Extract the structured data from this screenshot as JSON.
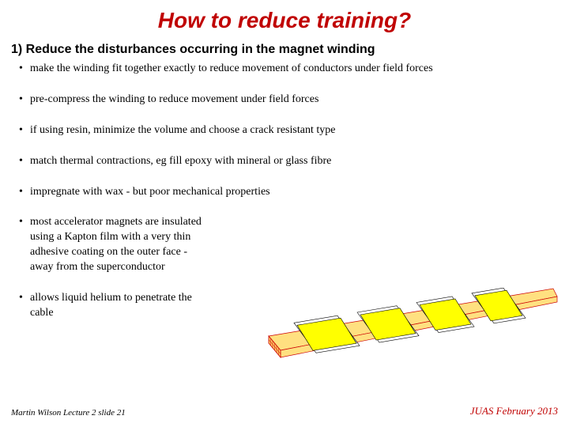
{
  "title": {
    "text": "How to reduce training?",
    "color": "#c00000",
    "fontsize": 28
  },
  "subtitle": {
    "text": "1) Reduce the disturbances occurring in the magnet winding",
    "fontsize": 16
  },
  "bullets": [
    {
      "text": "make the winding fit together exactly to reduce movement of conductors under field forces",
      "narrow": false
    },
    {
      "text": "pre-compress the winding to reduce movement under field forces",
      "narrow": false
    },
    {
      "text": "if using resin, minimize the volume and choose a crack resistant type",
      "narrow": false
    },
    {
      "text": "match thermal contractions, eg fill epoxy with mineral or glass fibre",
      "narrow": false
    },
    {
      "text": "impregnate with wax - but poor mechanical properties",
      "narrow": false
    },
    {
      "text": "most accelerator magnets are insulated using a Kapton film with a very thin adhesive coating on the outer face                      - away from the superconductor",
      "narrow": true
    },
    {
      "text": "allows liquid helium to penetrate the cable",
      "narrow": true
    }
  ],
  "footer": {
    "left": "Martin Wilson Lecture 2 slide 21",
    "right": "JUAS February 2013",
    "right_color": "#c00000"
  },
  "diagram": {
    "colors": {
      "cable_end_fill": "#ffcc66",
      "cable_end_stroke": "#cc0000",
      "cable_side_fill": "#ffe080",
      "cable_side_stroke": "#cc0000",
      "tape_fill": "#ffff00",
      "tape_stroke": "#000000",
      "tape_outline_fill": "#ffffff"
    }
  }
}
